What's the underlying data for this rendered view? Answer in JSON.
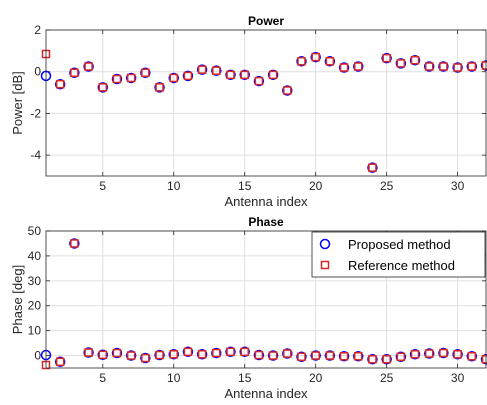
{
  "chart_data": [
    {
      "type": "scatter",
      "title": "Power",
      "xlabel": "Antenna index",
      "ylabel": "Power [dB]",
      "xlim": [
        1,
        32
      ],
      "ylim": [
        -5,
        2
      ],
      "xticks": [
        5,
        10,
        15,
        20,
        25,
        30
      ],
      "yticks": [
        -4,
        -2,
        0,
        2
      ],
      "grid": true,
      "legend": false,
      "x": [
        1,
        2,
        3,
        4,
        5,
        6,
        7,
        8,
        9,
        10,
        11,
        12,
        13,
        14,
        15,
        16,
        17,
        18,
        19,
        20,
        21,
        22,
        23,
        24,
        25,
        26,
        27,
        28,
        29,
        30,
        31,
        32
      ],
      "series": [
        {
          "name": "Proposed method",
          "marker": "circle",
          "color": "#0000ff",
          "values": [
            -0.2,
            -0.6,
            -0.05,
            0.25,
            -0.75,
            -0.35,
            -0.3,
            -0.05,
            -0.75,
            -0.3,
            -0.2,
            0.1,
            0.05,
            -0.15,
            -0.15,
            -0.45,
            -0.15,
            -0.9,
            0.5,
            0.7,
            0.5,
            0.2,
            0.25,
            -4.6,
            0.65,
            0.4,
            0.55,
            0.25,
            0.25,
            0.2,
            0.25,
            0.3
          ]
        },
        {
          "name": "Reference method",
          "marker": "square",
          "color": "#d62728",
          "values": [
            0.85,
            -0.6,
            -0.05,
            0.25,
            -0.75,
            -0.35,
            -0.3,
            -0.05,
            -0.75,
            -0.3,
            -0.2,
            0.1,
            0.05,
            -0.15,
            -0.15,
            -0.45,
            -0.15,
            -0.9,
            0.5,
            0.7,
            0.5,
            0.2,
            0.25,
            -4.6,
            0.65,
            0.4,
            0.55,
            0.25,
            0.25,
            0.2,
            0.25,
            0.3
          ]
        }
      ]
    },
    {
      "type": "scatter",
      "title": "Phase",
      "xlabel": "Antenna index",
      "ylabel": "Phase [deg]",
      "xlim": [
        1,
        32
      ],
      "ylim": [
        -5,
        50
      ],
      "xticks": [
        5,
        10,
        15,
        20,
        25,
        30
      ],
      "yticks": [
        0,
        10,
        20,
        30,
        40,
        50
      ],
      "grid": true,
      "legend": true,
      "legend_position": "top-right",
      "x": [
        1,
        2,
        3,
        4,
        5,
        6,
        7,
        8,
        9,
        10,
        11,
        12,
        13,
        14,
        15,
        16,
        17,
        18,
        19,
        20,
        21,
        22,
        23,
        24,
        25,
        26,
        27,
        28,
        29,
        30,
        31,
        32
      ],
      "series": [
        {
          "name": "Proposed method",
          "marker": "circle",
          "color": "#0000ff",
          "values": [
            0.2,
            -2.5,
            45,
            1.2,
            0.3,
            1,
            0,
            -1,
            0.2,
            0.5,
            1.5,
            0.5,
            1,
            1.5,
            1.5,
            0.2,
            0,
            0.8,
            -0.5,
            0,
            0,
            -0.3,
            -0.3,
            -1.5,
            -1.5,
            -0.5,
            0.5,
            0.8,
            1,
            0.5,
            -0.3,
            -1.5
          ]
        },
        {
          "name": "Reference method",
          "marker": "square",
          "color": "#d62728",
          "values": [
            -3.8,
            -2.5,
            45,
            1.2,
            0.3,
            1,
            0,
            -1,
            0.2,
            0.5,
            1.5,
            0.5,
            1,
            1.5,
            1.5,
            0.2,
            0,
            0.8,
            -0.5,
            0,
            0,
            -0.3,
            -0.3,
            -1.5,
            -1.5,
            -0.5,
            0.5,
            0.8,
            1,
            0.5,
            -0.3,
            -1.5
          ]
        }
      ]
    }
  ]
}
